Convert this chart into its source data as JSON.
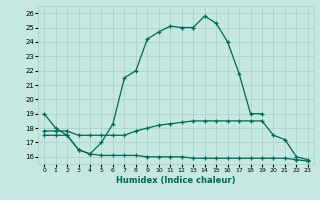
{
  "xlabel": "Humidex (Indice chaleur)",
  "ylabel": "",
  "bg_color": "#c5e8e0",
  "grid_color": "#a8cfc8",
  "line_color": "#006858",
  "xlim": [
    -0.5,
    23.5
  ],
  "ylim": [
    15.5,
    26.5
  ],
  "yticks": [
    16,
    17,
    18,
    19,
    20,
    21,
    22,
    23,
    24,
    25,
    26
  ],
  "xticks": [
    0,
    1,
    2,
    3,
    4,
    5,
    6,
    7,
    8,
    9,
    10,
    11,
    12,
    13,
    14,
    15,
    16,
    17,
    18,
    19,
    20,
    21,
    22,
    23
  ],
  "series1": {
    "x": [
      0,
      1,
      2,
      3,
      4,
      5,
      6,
      7,
      8,
      9,
      10,
      11,
      12,
      13,
      14,
      15,
      16,
      17,
      18,
      19
    ],
    "y": [
      19.0,
      18.0,
      17.5,
      16.5,
      16.2,
      17.0,
      18.3,
      21.5,
      22.0,
      24.2,
      24.7,
      25.1,
      25.0,
      25.0,
      25.8,
      25.3,
      24.0,
      21.8,
      19.0,
      19.0
    ]
  },
  "series2": {
    "x": [
      0,
      1,
      2,
      3,
      4,
      5,
      6,
      7,
      8,
      9,
      10,
      11,
      12,
      13,
      14,
      15,
      16,
      17,
      18,
      19,
      20,
      21,
      22,
      23
    ],
    "y": [
      17.8,
      17.8,
      17.8,
      17.5,
      17.5,
      17.5,
      17.5,
      17.5,
      17.8,
      18.0,
      18.2,
      18.3,
      18.4,
      18.5,
      18.5,
      18.5,
      18.5,
      18.5,
      18.5,
      18.5,
      17.5,
      17.2,
      16.0,
      15.8
    ]
  },
  "series3": {
    "x": [
      0,
      1,
      2,
      3,
      4,
      5,
      6,
      7,
      8,
      9,
      10,
      11,
      12,
      13,
      14,
      15,
      16,
      17,
      18,
      19,
      20,
      21,
      22,
      23
    ],
    "y": [
      17.5,
      17.5,
      17.5,
      16.5,
      16.2,
      16.1,
      16.1,
      16.1,
      16.1,
      16.0,
      16.0,
      16.0,
      16.0,
      15.9,
      15.9,
      15.9,
      15.9,
      15.9,
      15.9,
      15.9,
      15.9,
      15.9,
      15.8,
      15.7
    ]
  }
}
